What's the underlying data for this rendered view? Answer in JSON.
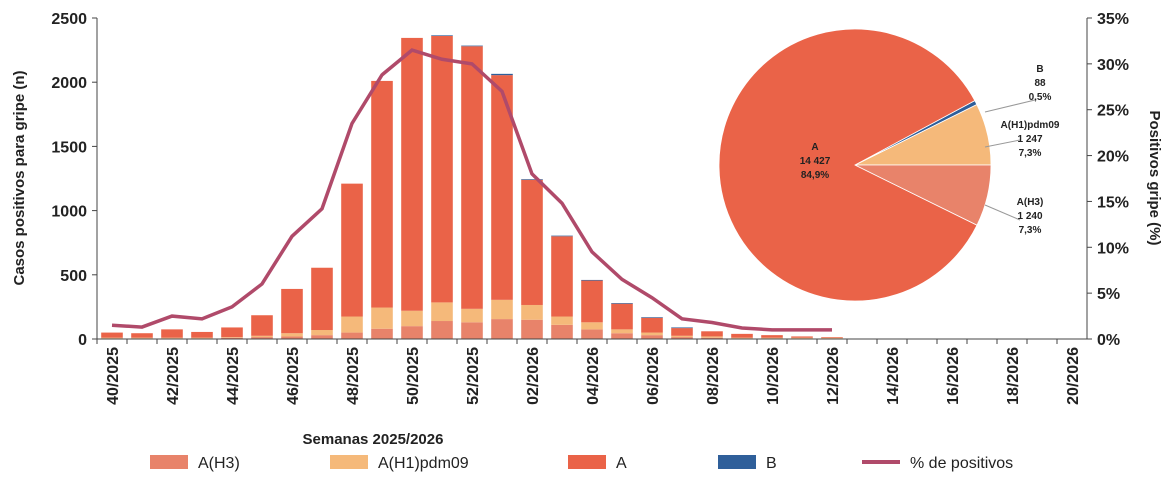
{
  "chart_data": [
    {
      "type": "bar",
      "x_label": "Semanas 2025/2026",
      "y_label": "Casos positivos para gripe (n)",
      "y2_label": "Positivos gripe (%)",
      "categories": [
        "40/2025",
        null,
        "42/2025",
        null,
        "44/2025",
        null,
        "46/2025",
        null,
        "48/2025",
        null,
        "50/2025",
        null,
        "52/2025",
        null,
        "02/2026",
        null,
        "04/2026",
        null,
        "06/2026",
        null,
        "08/2026",
        null,
        "10/2026",
        null,
        "12/2026",
        null,
        "14/2026",
        null,
        "16/2026",
        null,
        "18/2026",
        null,
        "20/2026"
      ],
      "stacked": true,
      "series": [
        {
          "name": "A(H3)",
          "color": "#e8836a",
          "values": [
            5,
            5,
            5,
            5,
            10,
            15,
            20,
            30,
            50,
            80,
            100,
            140,
            130,
            155,
            150,
            110,
            75,
            45,
            30,
            15,
            10,
            5,
            5,
            5,
            5,
            null,
            null,
            null,
            null,
            null,
            null,
            null,
            null
          ]
        },
        {
          "name": "A(H1)pdm09",
          "color": "#f5b97a",
          "values": [
            5,
            5,
            5,
            5,
            5,
            10,
            25,
            40,
            125,
            165,
            120,
            145,
            105,
            150,
            115,
            65,
            55,
            30,
            20,
            10,
            10,
            5,
            5,
            5,
            5,
            null,
            null,
            null,
            null,
            null,
            null,
            null,
            null
          ]
        },
        {
          "name": "A",
          "color": "#ea6348",
          "values": [
            40,
            35,
            65,
            45,
            75,
            160,
            345,
            485,
            1035,
            1765,
            2125,
            2075,
            2045,
            1750,
            975,
            625,
            325,
            200,
            115,
            60,
            40,
            30,
            20,
            10,
            5,
            null,
            null,
            null,
            null,
            null,
            null,
            null,
            null
          ]
        },
        {
          "name": "B",
          "color": "#2f5f9a",
          "values": [
            0,
            0,
            0,
            0,
            0,
            0,
            0,
            0,
            0,
            0,
            0,
            5,
            5,
            10,
            5,
            5,
            5,
            5,
            5,
            5,
            0,
            0,
            0,
            0,
            0,
            null,
            null,
            null,
            null,
            null,
            null,
            null,
            null
          ]
        },
        {
          "name": "% de positivos",
          "type": "line",
          "axis": "y2",
          "color": "#b04a6a",
          "values": [
            1.5,
            1.3,
            2.5,
            2.2,
            3.5,
            6,
            11.2,
            14.2,
            23.5,
            28.8,
            31.5,
            30.5,
            30,
            27,
            18,
            14.8,
            9.5,
            6.5,
            4.5,
            2.2,
            1.8,
            1.2,
            1,
            1,
            1,
            null,
            null,
            null,
            null,
            null,
            null,
            null,
            null
          ]
        }
      ],
      "ylim": [
        0,
        2500
      ],
      "yticks": [
        0,
        500,
        1000,
        1500,
        2000,
        2500
      ],
      "y2lim": [
        0,
        35
      ],
      "y2ticks": [
        {
          "value": 0,
          "label": "0%"
        },
        {
          "value": 5,
          "label": "5%"
        },
        {
          "value": 10,
          "label": "10%"
        },
        {
          "value": 15,
          "label": "15%"
        },
        {
          "value": 20,
          "label": "20%"
        },
        {
          "value": 25,
          "label": "25%"
        },
        {
          "value": 30,
          "label": "30%"
        },
        {
          "value": 35,
          "label": "35%"
        }
      ],
      "legend": "bottom"
    },
    {
      "type": "pie",
      "categories": [
        "A(H1)pdm09",
        "B",
        "A",
        "A(H3)"
      ],
      "values": [
        1247,
        88,
        14427,
        1240
      ],
      "value_labels": [
        "1 247",
        "88",
        "14 427",
        "1 240"
      ],
      "percent_labels": [
        "7,3%",
        "0,5%",
        "84,9%",
        "7,3%"
      ],
      "colors": [
        "#f5b97a",
        "#2f5f9a",
        "#ea6348",
        "#e8836a"
      ]
    }
  ]
}
